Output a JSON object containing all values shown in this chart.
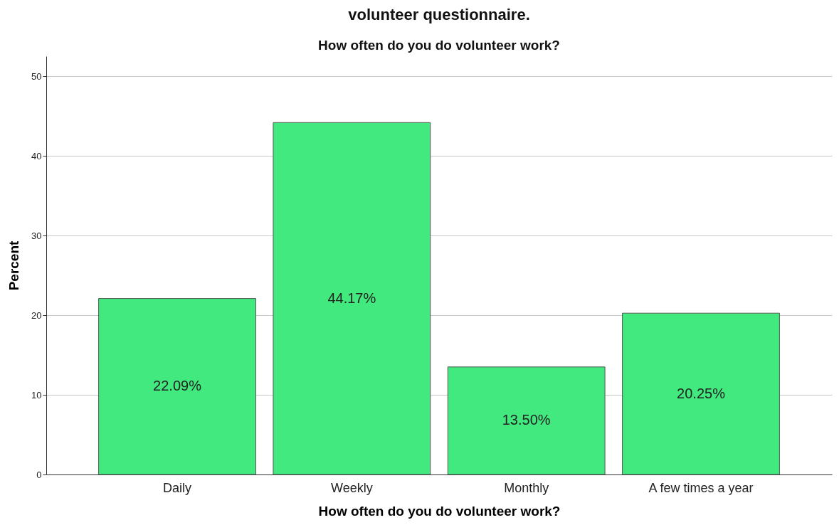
{
  "chart_data": {
    "type": "bar",
    "title": "volunteer questionnaire.",
    "subtitle": "How often do you do volunteer work?",
    "xlabel": "How often do you do volunteer work?",
    "ylabel": "Percent",
    "categories": [
      "Daily",
      "Weekly",
      "Monthly",
      "A few times a year"
    ],
    "values": [
      22.09,
      44.17,
      13.5,
      20.25
    ],
    "color": "#42e97e",
    "value_labels": [
      "22.09%",
      "44.17%",
      "13.50%",
      "20.25%"
    ],
    "ylim": [
      0,
      52.5
    ],
    "yticks": [
      0,
      10,
      20,
      30,
      40,
      50
    ],
    "grid": "y"
  }
}
